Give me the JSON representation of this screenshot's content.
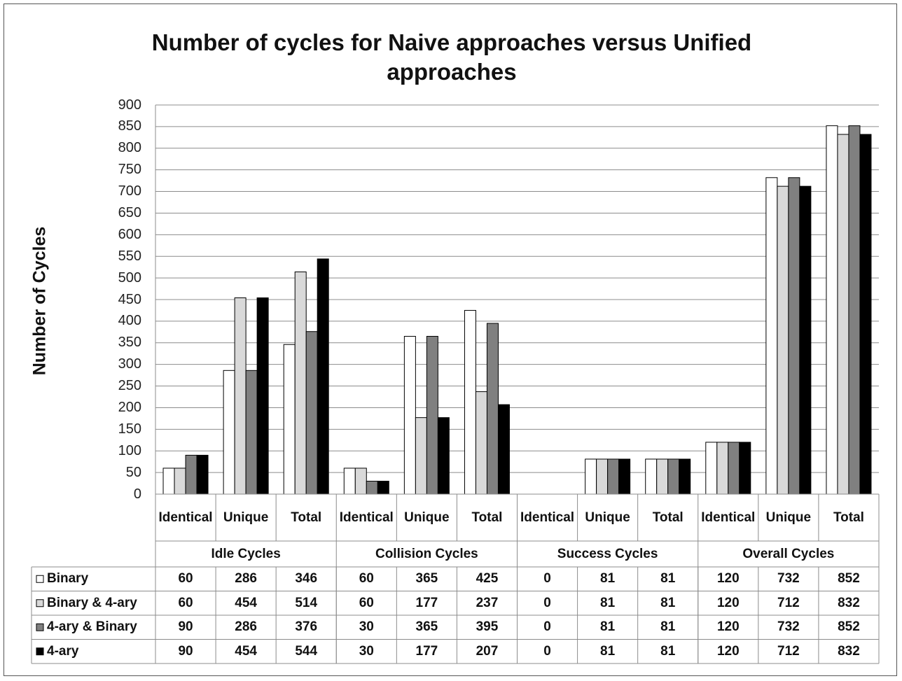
{
  "chart_data": {
    "type": "bar",
    "title": "Number of cycles for Naive approaches versus Unified approaches",
    "y_label": "Number of Cycles",
    "categories": [
      "Identical",
      "Unique",
      "Total",
      "Identical",
      "Unique",
      "Total",
      "Identical",
      "Unique",
      "Total",
      "Identical",
      "Unique",
      "Total"
    ],
    "groups": [
      "Idle Cycles",
      "Collision Cycles",
      "Success Cycles",
      "Overall Cycles"
    ],
    "series": [
      {
        "name": "Binary",
        "color": "#ffffff",
        "values": [
          60,
          286,
          346,
          60,
          365,
          425,
          0,
          81,
          81,
          120,
          732,
          852
        ]
      },
      {
        "name": "Binary & 4-ary",
        "color": "#d9d9d9",
        "values": [
          60,
          454,
          514,
          60,
          177,
          237,
          0,
          81,
          81,
          120,
          712,
          832
        ]
      },
      {
        "name": "4-ary & Binary",
        "color": "#808080",
        "values": [
          90,
          286,
          376,
          30,
          365,
          395,
          0,
          81,
          81,
          120,
          732,
          852
        ]
      },
      {
        "name": "4-ary",
        "color": "#000000",
        "values": [
          90,
          454,
          544,
          30,
          177,
          207,
          0,
          81,
          81,
          120,
          712,
          832
        ]
      }
    ],
    "ylim": [
      0,
      900
    ],
    "yticks": [
      0,
      50,
      100,
      150,
      200,
      250,
      300,
      350,
      400,
      450,
      500,
      550,
      600,
      650,
      700,
      750,
      800,
      850,
      900
    ],
    "grid": true
  }
}
